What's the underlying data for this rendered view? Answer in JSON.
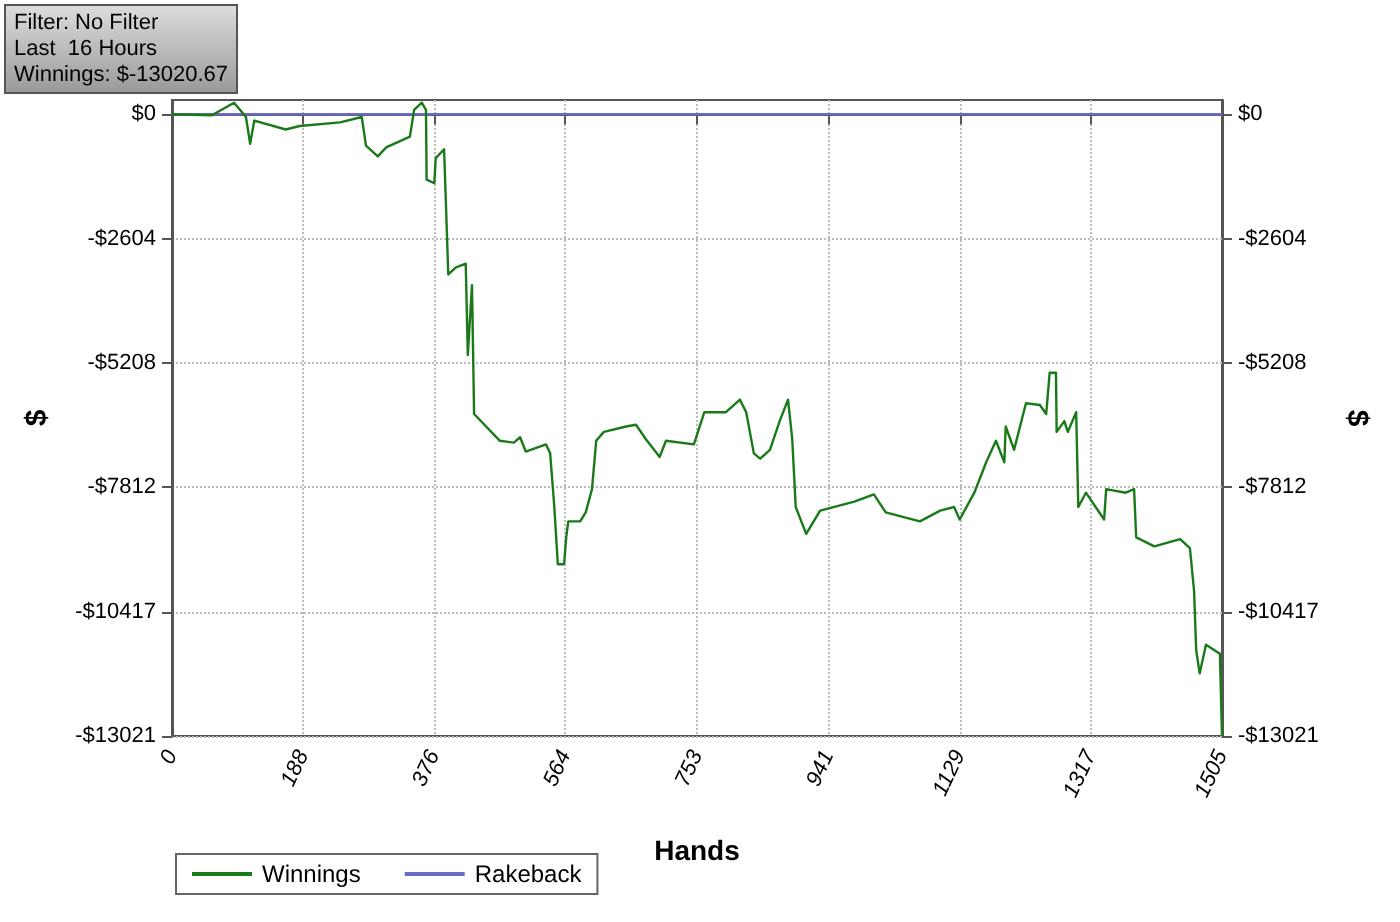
{
  "chart_data": {
    "type": "line",
    "xlabel": "Hands",
    "ylabel": "$",
    "y2label": "$",
    "annotations": [
      "Filter: No Filter",
      "Last  16 Hours",
      "Winnings: $-13020.67"
    ],
    "xlim": [
      0,
      1505
    ],
    "xticks": [
      0,
      188,
      376,
      564,
      753,
      941,
      1129,
      1317,
      1505
    ],
    "ylim": [
      -13021,
      300
    ],
    "yticks": [
      {
        "value": 0,
        "label": "$0"
      },
      {
        "value": -2604,
        "label": "-$2604"
      },
      {
        "value": -5208,
        "label": "-$5208"
      },
      {
        "value": -7812,
        "label": "-$7812"
      },
      {
        "value": -10417,
        "label": "-$10417"
      },
      {
        "value": -13021,
        "label": "-$13021"
      }
    ],
    "y2lim": [
      -13021,
      300
    ],
    "y2ticks": [
      {
        "value": 0,
        "label": "$0"
      },
      {
        "value": -2604,
        "label": "-$2604"
      },
      {
        "value": -5208,
        "label": "-$5208"
      },
      {
        "value": -7812,
        "label": "-$7812"
      },
      {
        "value": -10417,
        "label": "-$10417"
      },
      {
        "value": -13021,
        "label": "-$13021"
      }
    ],
    "grid": true,
    "legend": "bottom left",
    "marker": "none",
    "line_style": "solid",
    "series": [
      {
        "name": "Winnings",
        "color": "#1a7a1a",
        "x": [
          0,
          57,
          89,
          106,
          112,
          118,
          163,
          183,
          241,
          272,
          278,
          295,
          307,
          341,
          347,
          358,
          364,
          365,
          376,
          378,
          390,
          396,
          407,
          421,
          424,
          430,
          433,
          470,
          490,
          499,
          507,
          536,
          542,
          548,
          553,
          562,
          565,
          568,
          585,
          593,
          602,
          608,
          619,
          651,
          665,
          679,
          699,
          708,
          748,
          763,
          794,
          814,
          823,
          834,
          843,
          857,
          871,
          883,
          889,
          894,
          909,
          929,
          978,
          1006,
          1023,
          1072,
          1101,
          1121,
          1129,
          1150,
          1167,
          1181,
          1193,
          1195,
          1207,
          1224,
          1244,
          1253,
          1258,
          1267,
          1268,
          1279,
          1284,
          1296,
          1299,
          1310,
          1336,
          1339,
          1367,
          1379,
          1382,
          1408,
          1445,
          1459,
          1465,
          1468,
          1473,
          1482,
          1502,
          1505
        ],
        "values": [
          0,
          -19,
          244,
          -56,
          -618,
          -131,
          -318,
          -244,
          -169,
          -56,
          -656,
          -881,
          -693,
          -468,
          94,
          244,
          94,
          -1368,
          -1443,
          -918,
          -731,
          -3354,
          -3204,
          -3129,
          -5040,
          -3578,
          -6276,
          -6838,
          -6876,
          -6763,
          -7063,
          -6913,
          -7101,
          -8225,
          -9424,
          -9424,
          -8862,
          -8525,
          -8525,
          -8337,
          -7850,
          -6838,
          -6651,
          -6538,
          -6501,
          -6801,
          -7175,
          -6838,
          -6913,
          -6239,
          -6239,
          -5976,
          -6239,
          -7101,
          -7213,
          -7026,
          -6426,
          -5976,
          -6801,
          -8225,
          -8787,
          -8300,
          -8112,
          -7962,
          -8337,
          -8525,
          -8300,
          -8225,
          -8487,
          -7925,
          -7288,
          -6838,
          -7288,
          -6539,
          -7026,
          -6052,
          -6089,
          -6276,
          -5414,
          -5414,
          -6651,
          -6426,
          -6651,
          -6239,
          -8225,
          -7925,
          -8487,
          -7850,
          -7925,
          -7850,
          -8862,
          -9049,
          -8899,
          -9087,
          -9986,
          -11222,
          -11710,
          -11110,
          -11297,
          -13020.67
        ]
      },
      {
        "name": "Rakeback",
        "color": "#6a6ac8",
        "x": [
          0,
          1505
        ],
        "values": [
          0,
          0
        ]
      }
    ]
  }
}
